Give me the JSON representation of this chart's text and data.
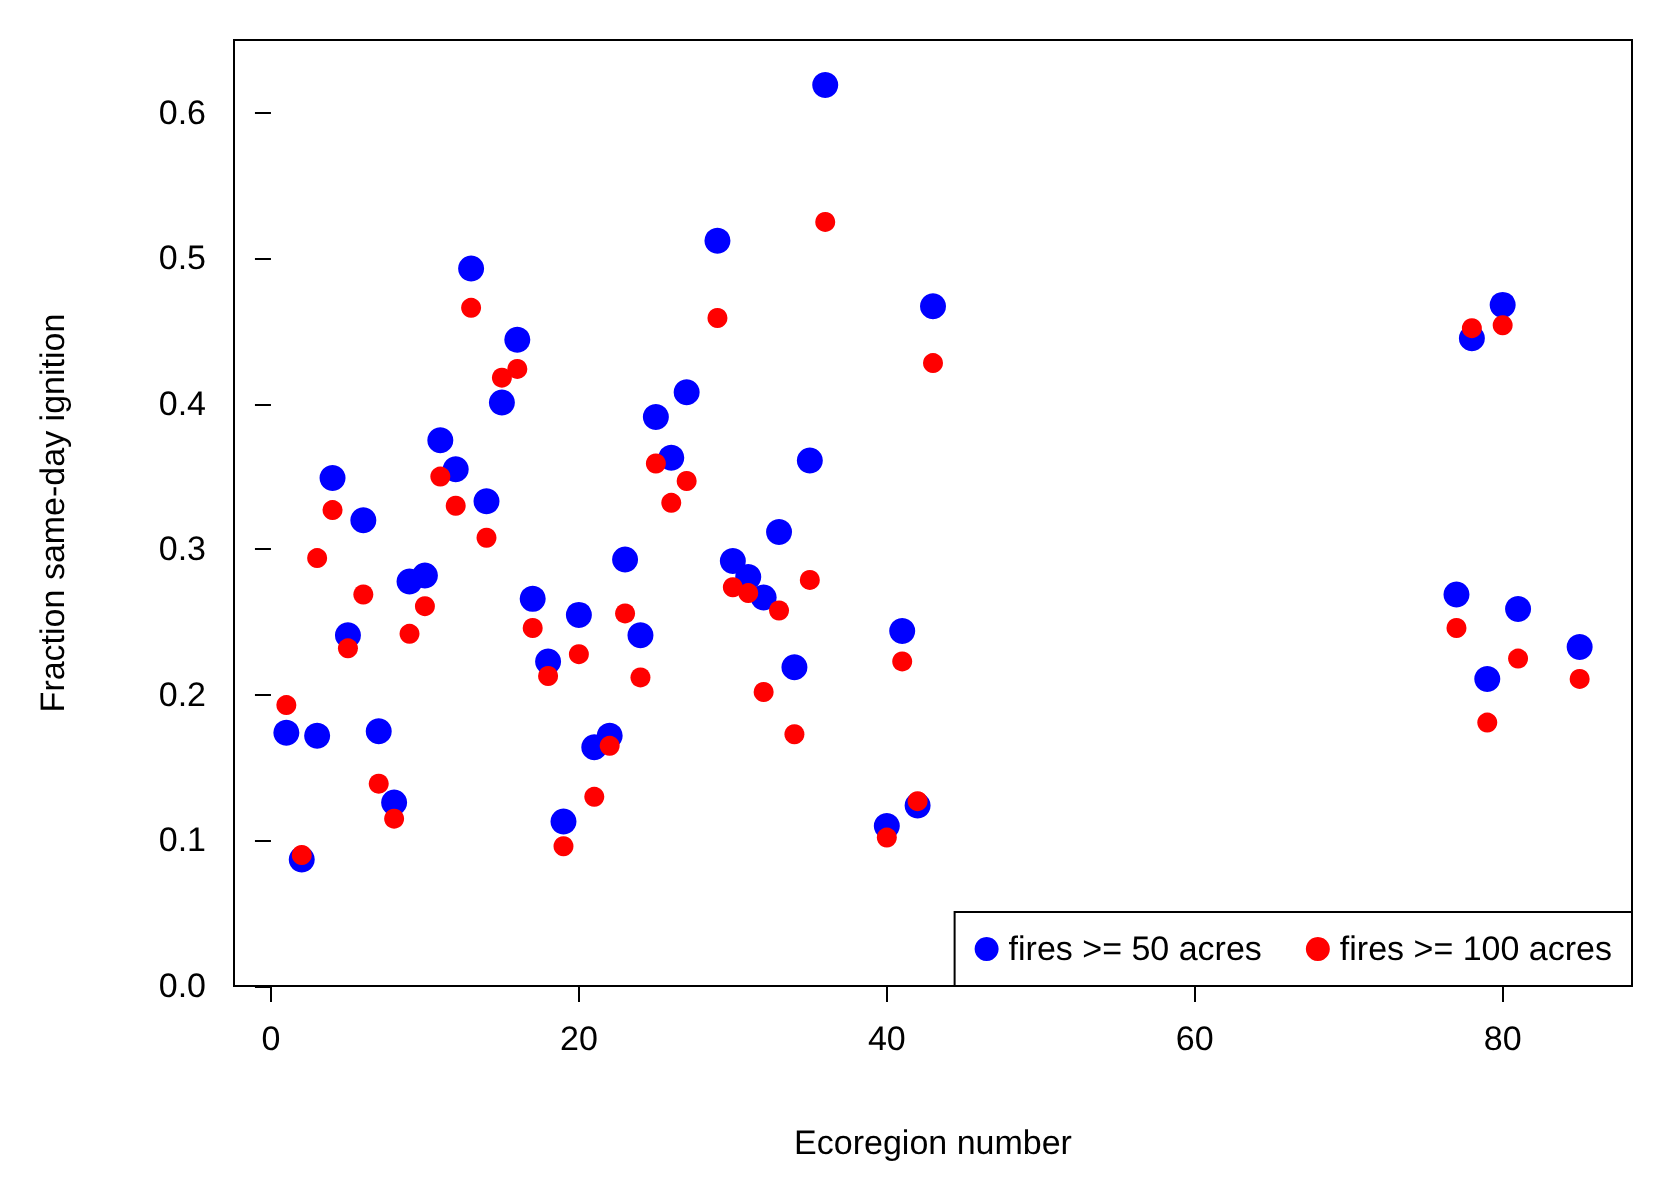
{
  "chart_data": {
    "type": "scatter",
    "xlabel": "Ecoregion number",
    "ylabel": "Fraction same-day ignition",
    "x": [
      1,
      2,
      3,
      4,
      5,
      6,
      7,
      8,
      9,
      10,
      11,
      12,
      13,
      14,
      15,
      16,
      17,
      18,
      19,
      20,
      21,
      22,
      23,
      24,
      25,
      26,
      27,
      29,
      30,
      31,
      32,
      33,
      34,
      35,
      36,
      40,
      41,
      42,
      43,
      77,
      78,
      79,
      80,
      81,
      85
    ],
    "series": [
      {
        "name": "fires >= 50 acres",
        "color": "#0000ff",
        "values": [
          0.174,
          0.087,
          0.172,
          0.349,
          0.241,
          0.32,
          0.175,
          0.126,
          0.278,
          0.282,
          0.375,
          0.355,
          0.493,
          0.333,
          0.401,
          0.444,
          0.266,
          0.223,
          0.113,
          0.255,
          0.164,
          0.172,
          0.293,
          0.241,
          0.391,
          0.363,
          0.408,
          0.512,
          0.292,
          0.281,
          0.267,
          0.312,
          0.219,
          0.361,
          0.619,
          0.11,
          0.244,
          0.124,
          0.467,
          0.269,
          0.445,
          0.211,
          0.468,
          0.259,
          0.233
        ]
      },
      {
        "name": "fires >= 100 acres",
        "color": "#ff0000",
        "values": [
          0.193,
          0.09,
          0.294,
          0.327,
          0.232,
          0.269,
          0.139,
          0.115,
          0.242,
          0.261,
          0.35,
          0.33,
          0.466,
          0.308,
          0.418,
          0.424,
          0.246,
          0.213,
          0.096,
          0.228,
          0.13,
          0.165,
          0.256,
          0.212,
          0.359,
          0.332,
          0.347,
          0.459,
          0.274,
          0.27,
          0.202,
          0.258,
          0.173,
          0.279,
          0.525,
          0.102,
          0.223,
          0.127,
          0.428,
          0.246,
          0.452,
          0.181,
          0.454,
          0.225,
          0.211
        ]
      }
    ],
    "xlim": [
      -2.4,
      88.4
    ],
    "xticks": [
      0,
      20,
      40,
      60,
      80
    ],
    "ylim": [
      0,
      0.65
    ],
    "yticks": [
      {
        "value": 0,
        "label": "0.0"
      },
      0.1,
      0.2,
      0.3,
      0.4,
      0.5,
      0.6
    ],
    "legend": "bottom right",
    "marker": "circle",
    "grid": false
  }
}
